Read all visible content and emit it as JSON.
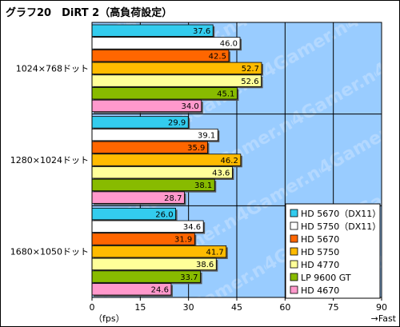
{
  "chart_data": {
    "type": "bar",
    "orientation": "horizontal",
    "title": "グラフ20　DiRT 2（高負荷設定）",
    "categories": [
      "1024×768ドット",
      "1280×1024ドット",
      "1680×1050ドット"
    ],
    "series": [
      {
        "name": "HD 5670（DX11）",
        "color": "#33ccee",
        "values": [
          37.6,
          29.9,
          26.0
        ]
      },
      {
        "name": "HD 5750（DX11）",
        "color": "#ffffff",
        "values": [
          46.0,
          39.1,
          34.6
        ]
      },
      {
        "name": "HD 5670",
        "color": "#ff6600",
        "values": [
          42.5,
          35.9,
          31.9
        ]
      },
      {
        "name": "HD 5750",
        "color": "#ffbb00",
        "values": [
          52.7,
          46.2,
          41.7
        ]
      },
      {
        "name": "HD 4770",
        "color": "#ffff99",
        "values": [
          52.6,
          43.6,
          38.6
        ]
      },
      {
        "name": "LP 9600 GT",
        "color": "#88bb00",
        "values": [
          45.1,
          38.1,
          33.7
        ]
      },
      {
        "name": "HD 4670",
        "color": "#ff99cc",
        "values": [
          34.0,
          28.7,
          24.6
        ]
      }
    ],
    "xlim": [
      0,
      90
    ],
    "xticks": [
      "0",
      "15",
      "30",
      "45",
      "60",
      "75",
      "90"
    ],
    "xlabel_unit": "（fps）",
    "xlabel_direction": "→Fast",
    "legend_position": "bottom-right",
    "plot_background": "#99ccff",
    "watermark": "4Gamer.net"
  }
}
